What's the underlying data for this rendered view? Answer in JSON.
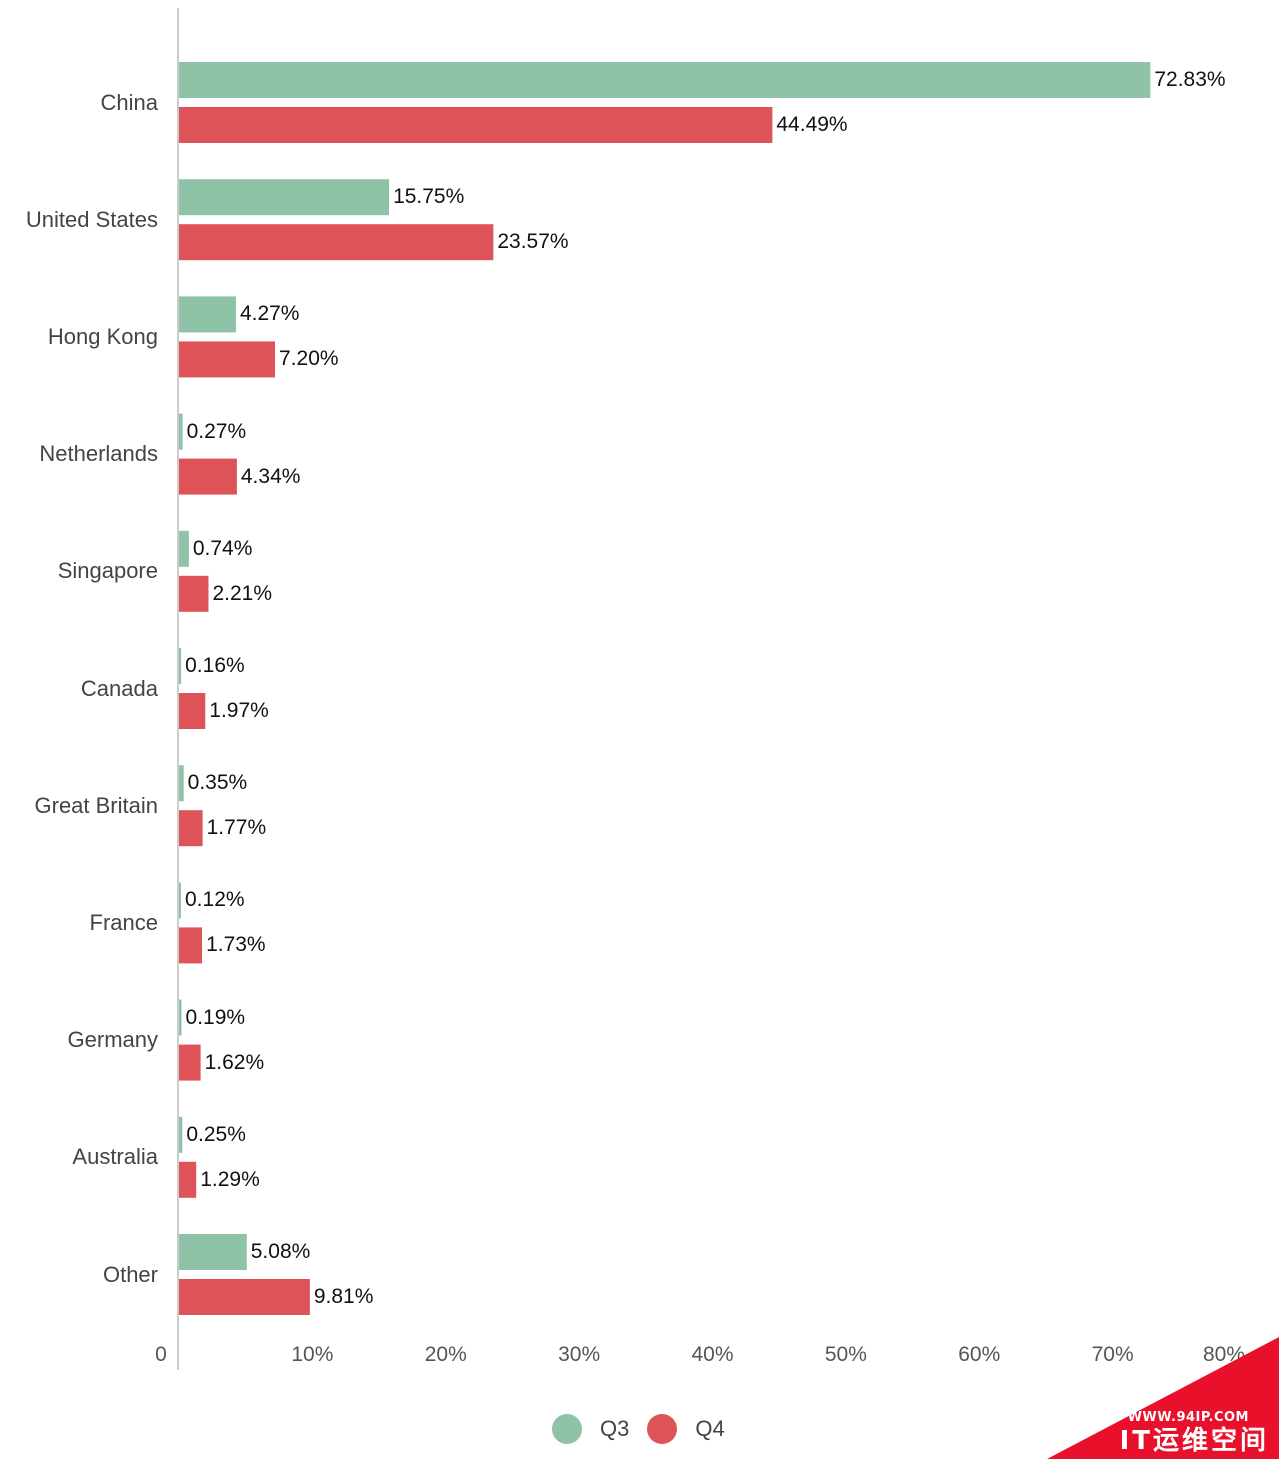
{
  "chart_data": {
    "type": "bar",
    "orientation": "horizontal",
    "categories": [
      "China",
      "United States",
      "Hong Kong",
      "Netherlands",
      "Singapore",
      "Canada",
      "Great Britain",
      "France",
      "Germany",
      "Australia",
      "Other"
    ],
    "series": [
      {
        "name": "Q3",
        "color": "#8fc3a7",
        "values": [
          72.83,
          15.75,
          4.27,
          0.27,
          0.74,
          0.16,
          0.35,
          0.12,
          0.19,
          0.25,
          5.08
        ],
        "labels": [
          "72.83%",
          "15.75%",
          "4.27%",
          "0.27%",
          "0.74%",
          "0.16%",
          "0.35%",
          "0.12%",
          "0.19%",
          "0.25%",
          "5.08%"
        ]
      },
      {
        "name": "Q4",
        "color": "#dd5357",
        "values": [
          44.49,
          23.57,
          7.2,
          4.34,
          2.21,
          1.97,
          1.77,
          1.73,
          1.62,
          1.29,
          9.81
        ],
        "labels": [
          "44.49%",
          "23.57%",
          "7.20%",
          "4.34%",
          "2.21%",
          "1.97%",
          "1.77%",
          "1.73%",
          "1.62%",
          "1.29%",
          "9.81%"
        ]
      }
    ],
    "xlim": [
      0,
      80
    ],
    "x_ticks": [
      0,
      10,
      20,
      30,
      40,
      50,
      60,
      70,
      80
    ],
    "x_tick_labels": [
      "0",
      "10%",
      "20%",
      "30%",
      "40%",
      "50%",
      "60%",
      "70%",
      "80%"
    ],
    "grid": false,
    "legend_position": "bottom-center"
  },
  "watermark": {
    "site": "WWW.94IP.COM",
    "name": "IT运维空间",
    "color": "#e8102a"
  }
}
